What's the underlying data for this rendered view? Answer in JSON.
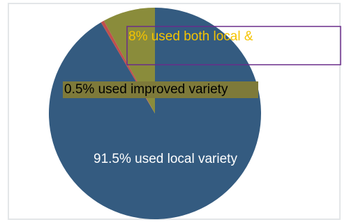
{
  "chart_data": {
    "type": "pie",
    "values": [
      91.5,
      0.5,
      8
    ],
    "value_labels": [
      "91.5% used local variety",
      "0.5% used improved variety",
      "8% used both local &"
    ],
    "colors": [
      "#345b80",
      "#c0504d",
      "#8a8c3b"
    ]
  }
}
